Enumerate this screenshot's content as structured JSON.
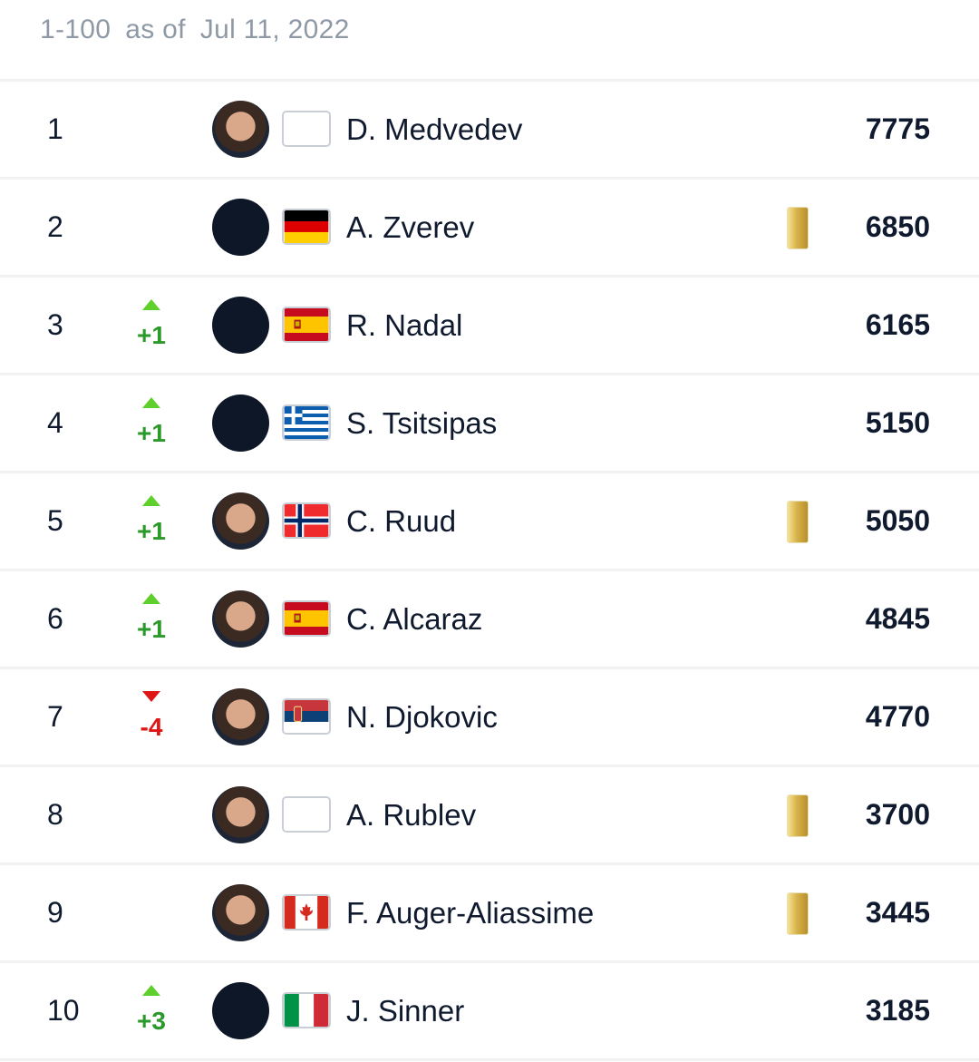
{
  "header": {
    "range": "1-100",
    "as_of_label": "as of",
    "date": "Jul 11, 2022"
  },
  "colors": {
    "up": "#5fcf2c",
    "up_text": "#2b9a2a",
    "down": "#e01515",
    "badge": "#d7b34b"
  },
  "rankings": [
    {
      "rank": "1",
      "move": "",
      "dir": "none",
      "avatar": "photo",
      "flag": "none",
      "name": "D. Medvedev",
      "badge": false,
      "points": "7775"
    },
    {
      "rank": "2",
      "move": "",
      "dir": "none",
      "avatar": "blank",
      "flag": "germany",
      "name": "A. Zverev",
      "badge": true,
      "points": "6850"
    },
    {
      "rank": "3",
      "move": "+1",
      "dir": "up",
      "avatar": "blank",
      "flag": "spain",
      "name": "R. Nadal",
      "badge": false,
      "points": "6165"
    },
    {
      "rank": "4",
      "move": "+1",
      "dir": "up",
      "avatar": "blank",
      "flag": "greece",
      "name": "S. Tsitsipas",
      "badge": false,
      "points": "5150"
    },
    {
      "rank": "5",
      "move": "+1",
      "dir": "up",
      "avatar": "photo",
      "flag": "norway",
      "name": "C. Ruud",
      "badge": true,
      "points": "5050"
    },
    {
      "rank": "6",
      "move": "+1",
      "dir": "up",
      "avatar": "photo",
      "flag": "spain",
      "name": "C. Alcaraz",
      "badge": false,
      "points": "4845"
    },
    {
      "rank": "7",
      "move": "-4",
      "dir": "down",
      "avatar": "photo",
      "flag": "serbia",
      "name": "N. Djokovic",
      "badge": false,
      "points": "4770"
    },
    {
      "rank": "8",
      "move": "",
      "dir": "none",
      "avatar": "photo",
      "flag": "none",
      "name": "A. Rublev",
      "badge": true,
      "points": "3700"
    },
    {
      "rank": "9",
      "move": "",
      "dir": "none",
      "avatar": "photo",
      "flag": "canada",
      "name": "F. Auger-Aliassime",
      "badge": true,
      "points": "3445"
    },
    {
      "rank": "10",
      "move": "+3",
      "dir": "up",
      "avatar": "blank",
      "flag": "italy",
      "name": "J. Sinner",
      "badge": false,
      "points": "3185"
    }
  ]
}
